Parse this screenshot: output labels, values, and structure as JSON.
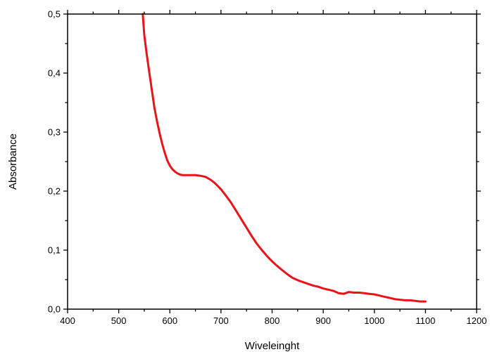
{
  "chart_data": {
    "type": "line",
    "title": "",
    "xlabel": "Wiveleinght",
    "ylabel": "Absorbance",
    "xlim": [
      400,
      1200
    ],
    "ylim": [
      0,
      0.5
    ],
    "x_ticks": [
      400,
      500,
      600,
      700,
      800,
      900,
      1000,
      1100,
      1200
    ],
    "x_tick_labels": [
      "400",
      "500",
      "600",
      "700",
      "800",
      "900",
      "1000",
      "1100",
      "1200"
    ],
    "y_ticks": [
      0,
      0.1,
      0.2,
      0.3,
      0.4,
      0.5
    ],
    "y_tick_labels": [
      "0,0",
      "0,1",
      "0,2",
      "0,3",
      "0,4",
      "0,5"
    ],
    "grid": false,
    "series": [
      {
        "color": "#e8141a",
        "x": [
          547,
          550,
          555,
          560,
          565,
          570,
          575,
          580,
          585,
          590,
          595,
          600,
          605,
          610,
          615,
          620,
          625,
          630,
          640,
          650,
          660,
          670,
          680,
          690,
          700,
          710,
          720,
          730,
          740,
          750,
          760,
          770,
          780,
          790,
          800,
          810,
          820,
          830,
          840,
          850,
          860,
          870,
          880,
          890,
          900,
          910,
          920,
          930,
          940,
          950,
          960,
          970,
          980,
          990,
          1000,
          1010,
          1020,
          1030,
          1040,
          1050,
          1060,
          1070,
          1080,
          1090,
          1100
        ],
        "y": [
          0.5,
          0.465,
          0.43,
          0.4,
          0.37,
          0.34,
          0.318,
          0.298,
          0.28,
          0.265,
          0.252,
          0.243,
          0.237,
          0.233,
          0.23,
          0.228,
          0.227,
          0.227,
          0.227,
          0.227,
          0.226,
          0.224,
          0.219,
          0.212,
          0.203,
          0.192,
          0.18,
          0.166,
          0.152,
          0.138,
          0.124,
          0.111,
          0.1,
          0.09,
          0.081,
          0.073,
          0.066,
          0.059,
          0.053,
          0.049,
          0.046,
          0.043,
          0.04,
          0.038,
          0.035,
          0.033,
          0.031,
          0.027,
          0.026,
          0.029,
          0.028,
          0.028,
          0.027,
          0.026,
          0.025,
          0.023,
          0.021,
          0.019,
          0.017,
          0.016,
          0.015,
          0.015,
          0.014,
          0.013,
          0.013
        ]
      }
    ]
  }
}
